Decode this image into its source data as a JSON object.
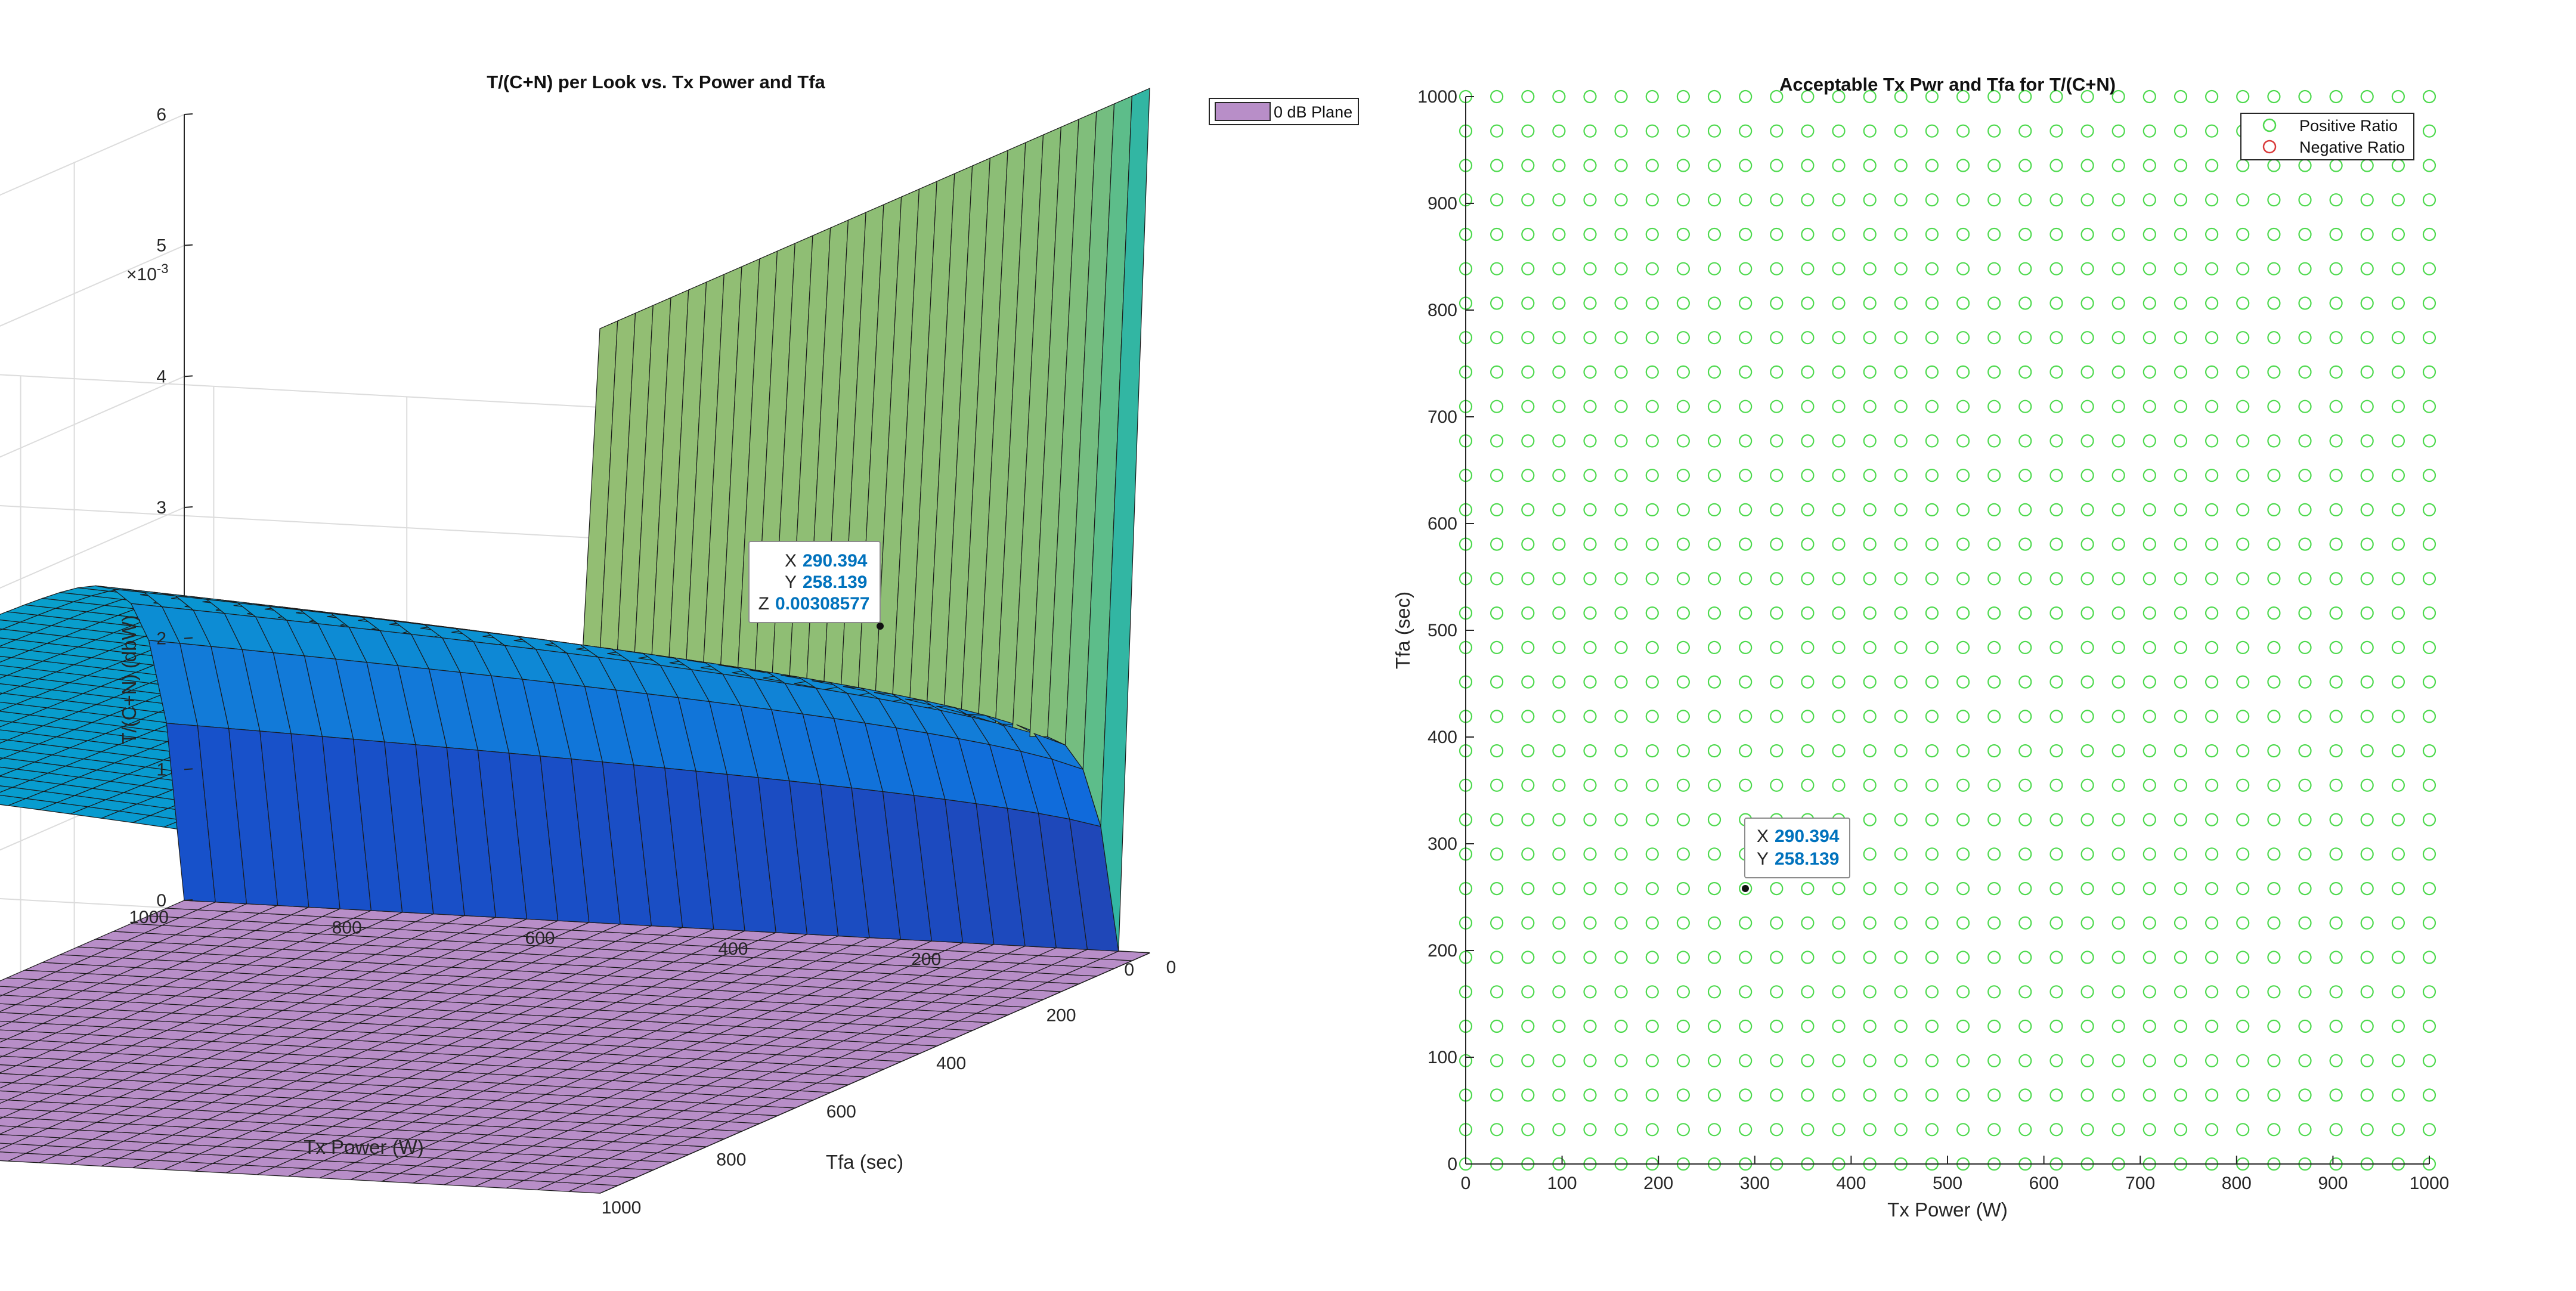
{
  "figure": {
    "background": "#ffffff"
  },
  "chart_data": [
    {
      "type": "surface",
      "title": "T/(C+N) per Look vs. Tx Power and Tfa",
      "xlabel": "Tfa (sec)",
      "ylabel": "Tx Power (W)",
      "zlabel": "T/(C+N) (dbW)",
      "z_exponent_label": "×10",
      "z_exponent_power": "-3",
      "x_ticks": [
        "0",
        "200",
        "400",
        "600",
        "800",
        "1000"
      ],
      "y_ticks": [
        "0",
        "200",
        "400",
        "600",
        "800",
        "1000"
      ],
      "z_ticks": [
        "0",
        "1",
        "2",
        "3",
        "4",
        "5",
        "6"
      ],
      "xlim": [
        0,
        1000
      ],
      "ylim": [
        0,
        1000
      ],
      "zlim": [
        0,
        0.006
      ],
      "grid": true,
      "legend": {
        "position": "top-right",
        "entries": [
          "0 dB Plane"
        ]
      },
      "series": [
        {
          "name": "",
          "surface": "T/(C+N) per look",
          "colormap": "parula",
          "z_at_max_power_low_tfa": 0.00275,
          "z_at_max_power_high_tfa": 0.00275,
          "z_peak_low_power": 0.0066
        },
        {
          "name": "0 dB Plane",
          "z": 0,
          "color": "#B88EC8"
        }
      ],
      "datatip": {
        "x_label": "X",
        "x_value": "290.394",
        "y_label": "Y",
        "y_value": "258.139",
        "z_label": "Z",
        "z_value": "0.00308577"
      }
    },
    {
      "type": "scatter",
      "title": "Acceptable Tx Pwr and Tfa for T/(C+N)",
      "xlabel": "Tx Power (W)",
      "ylabel": "Tfa (sec)",
      "xlim": [
        0,
        1000
      ],
      "ylim": [
        0,
        1000
      ],
      "x_ticks": [
        "0",
        "100",
        "200",
        "300",
        "400",
        "500",
        "600",
        "700",
        "800",
        "900",
        "1000"
      ],
      "y_ticks": [
        "0",
        "100",
        "200",
        "300",
        "400",
        "500",
        "600",
        "700",
        "800",
        "900",
        "1000"
      ],
      "grid_points_per_axis": 32,
      "grid_start": 0,
      "grid_end": 1000,
      "legend": {
        "position": "top-right",
        "entries": [
          "Positive Ratio",
          "Negative Ratio"
        ]
      },
      "series": [
        {
          "name": "Positive Ratio",
          "color": "#4DD94D",
          "marker": "circle",
          "points": "all grid points"
        },
        {
          "name": "Negative Ratio",
          "color": "#D93A3A",
          "marker": "circle",
          "points": "none"
        }
      ],
      "datatip": {
        "x_label": "X",
        "x_value": "290.394",
        "y_label": "Y",
        "y_value": "258.139"
      }
    }
  ]
}
